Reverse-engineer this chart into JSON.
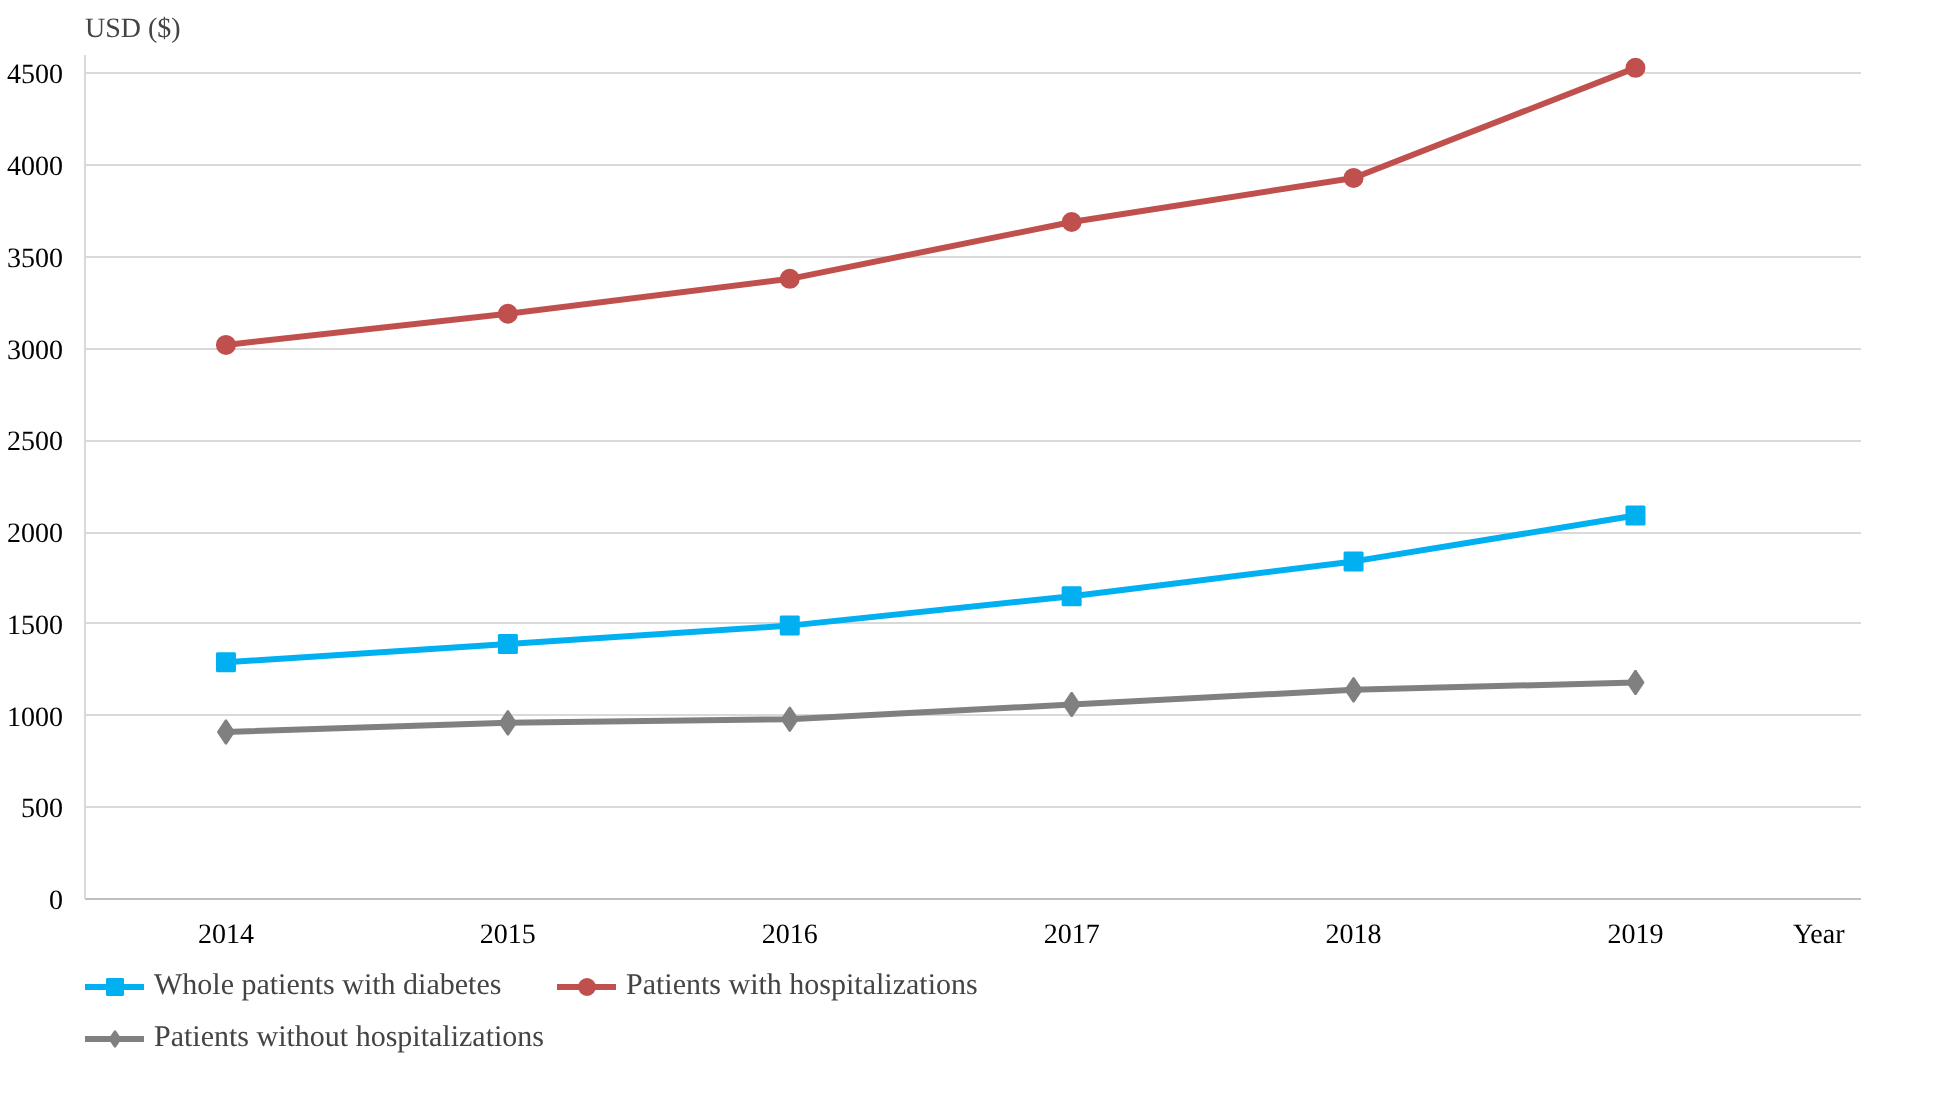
{
  "chart_data": {
    "type": "line",
    "ylabel": "USD ($)",
    "xlabel": "Year",
    "categories": [
      "2014",
      "2015",
      "2016",
      "2017",
      "2018",
      "2019"
    ],
    "series": [
      {
        "name": "Whole patients with diabetes",
        "color": "#00b0f0",
        "marker": "square",
        "values": [
          1290,
          1390,
          1490,
          1650,
          1840,
          2090
        ]
      },
      {
        "name": "Patients with hospitalizations",
        "color": "#c0504d",
        "marker": "circle",
        "values": [
          3020,
          3190,
          3380,
          3690,
          3930,
          4530
        ]
      },
      {
        "name": "Patients without hospitalizations",
        "color": "#808080",
        "marker": "diamond",
        "values": [
          910,
          960,
          980,
          1060,
          1140,
          1180
        ]
      }
    ],
    "ylim": [
      0,
      4600
    ],
    "yticks": [
      0,
      500,
      1000,
      1500,
      2000,
      2500,
      3000,
      3500,
      4000,
      4500
    ],
    "grid": "y",
    "legend": "bottom"
  }
}
